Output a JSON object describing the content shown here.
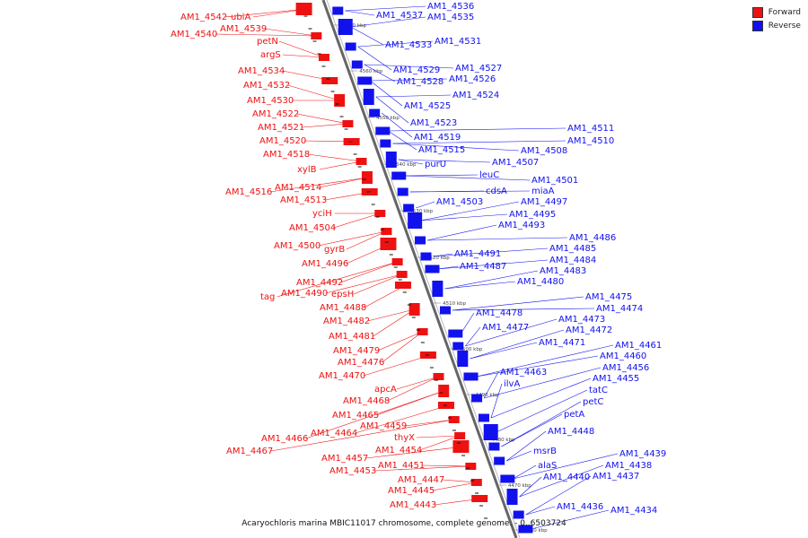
{
  "legend": [
    {
      "label": "Forward",
      "color": "#ee1111"
    },
    {
      "label": "Reverse",
      "color": "#1111ee"
    }
  ],
  "caption": "Acaryochloris marina MBIC11017 chromosome, complete genome. - 0..6503724",
  "colors": {
    "forward": "#ee1111",
    "reverse": "#1111ee",
    "axis": "#888888"
  },
  "axis": {
    "top_kbp": 4575,
    "bottom_kbp": 4460
  },
  "ticks": [
    "4570 kbp",
    "4560 kbp",
    "4550 kbp",
    "4540 kbp",
    "4530 kbp",
    "4520 kbp",
    "4510 kbp",
    "4500 kbp",
    "4490 kbp",
    "4480 kbp",
    "4470 kbp",
    "4460 kbp"
  ],
  "forward_labels": [
    "AM1_4542",
    "ubiA",
    "AM1_4539",
    "AM1_4540",
    "petN",
    "argS",
    "AM1_4534",
    "AM1_4532",
    "AM1_4530",
    "AM1_4522",
    "AM1_4521",
    "AM1_4520",
    "AM1_4518",
    "xylB",
    "AM1_4516",
    "AM1_4514",
    "AM1_4513",
    "yciH",
    "AM1_4504",
    "AM1_4500",
    "gyrB",
    "AM1_4496",
    "AM1_4492",
    "tag",
    "AM1_4490",
    "epsH",
    "AM1_4488",
    "AM1_4482",
    "AM1_4481",
    "AM1_4479",
    "AM1_4476",
    "AM1_4470",
    "apcA",
    "AM1_4468",
    "AM1_4465",
    "AM1_4466",
    "AM1_4464",
    "AM1_4459",
    "AM1_4467",
    "thyX",
    "AM1_4454",
    "AM1_4457",
    "AM1_4453",
    "AM1_4451",
    "AM1_4447",
    "AM1_4445",
    "AM1_4443"
  ],
  "reverse_labels": [
    "AM1_4537",
    "AM1_4536",
    "AM1_4535",
    "AM1_4533",
    "AM1_4531",
    "AM1_4529",
    "AM1_4527",
    "AM1_4528",
    "AM1_4526",
    "AM1_4525",
    "AM1_4524",
    "AM1_4523",
    "AM1_4519",
    "AM1_4515",
    "AM1_4511",
    "AM1_4510",
    "AM1_4508",
    "purU",
    "AM1_4507",
    "leuC",
    "AM1_4501",
    "cdsA",
    "miaA",
    "AM1_4503",
    "AM1_4497",
    "AM1_4495",
    "AM1_4493",
    "AM1_4486",
    "AM1_4485",
    "AM1_4491",
    "AM1_4484",
    "AM1_4487",
    "AM1_4483",
    "AM1_4480",
    "AM1_4475",
    "AM1_4474",
    "AM1_4478",
    "AM1_4473",
    "AM1_4477",
    "AM1_4472",
    "AM1_4471",
    "AM1_4461",
    "AM1_4460",
    "AM1_4456",
    "AM1_4463",
    "AM1_4455",
    "ilvA",
    "tatC",
    "petC",
    "petA",
    "AM1_4448",
    "msrB",
    "alaS",
    "AM1_4439",
    "AM1_4438",
    "AM1_4440",
    "AM1_4437",
    "AM1_4436",
    "AM1_4434"
  ]
}
